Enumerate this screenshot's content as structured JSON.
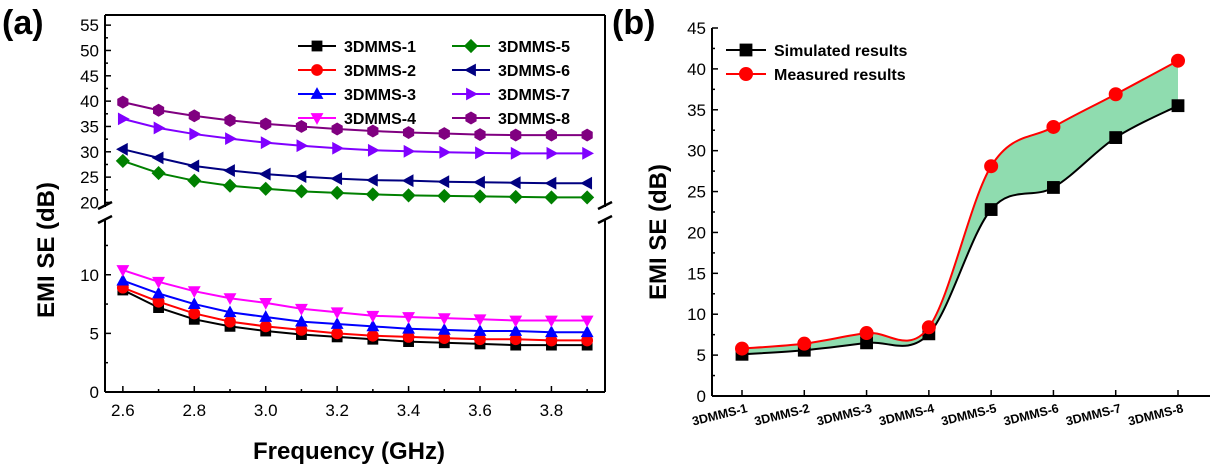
{
  "chart_data": [
    {
      "panel_label": "(a)",
      "type": "line",
      "xlabel": "Frequency (GHz)",
      "ylabel": "EMI SE (dB)",
      "x": [
        2.6,
        2.7,
        2.8,
        2.9,
        3.0,
        3.1,
        3.2,
        3.3,
        3.4,
        3.5,
        3.6,
        3.7,
        3.8,
        3.9
      ],
      "xlim": [
        2.55,
        3.95
      ],
      "x_ticks": [
        2.6,
        2.8,
        3.0,
        3.2,
        3.4,
        3.6,
        3.8
      ],
      "x_tick_labels": [
        "2.6",
        "2.8",
        "3.0",
        "3.2",
        "3.4",
        "3.6",
        "3.8"
      ],
      "ylim_lower": [
        0,
        14.5
      ],
      "ylim_upper": [
        19.5,
        57
      ],
      "y_ticks_lower": [
        0,
        5,
        10
      ],
      "y_ticks_upper": [
        20,
        25,
        30,
        35,
        40,
        45,
        50,
        55
      ],
      "axis_break": true,
      "legend_position": "top-right",
      "series": [
        {
          "name": "3DMMS-1",
          "color": "#000000",
          "marker": "square",
          "values": [
            8.7,
            7.2,
            6.2,
            5.6,
            5.2,
            4.9,
            4.7,
            4.5,
            4.3,
            4.2,
            4.1,
            4.0,
            4.0,
            4.0
          ]
        },
        {
          "name": "3DMMS-2",
          "color": "#ff0000",
          "marker": "circle",
          "values": [
            8.9,
            7.7,
            6.7,
            6.0,
            5.6,
            5.3,
            5.0,
            4.8,
            4.7,
            4.6,
            4.5,
            4.5,
            4.4,
            4.4
          ]
        },
        {
          "name": "3DMMS-3",
          "color": "#0000ff",
          "marker": "triangle-up",
          "values": [
            9.5,
            8.4,
            7.5,
            6.8,
            6.4,
            6.0,
            5.8,
            5.6,
            5.4,
            5.3,
            5.2,
            5.2,
            5.1,
            5.1
          ]
        },
        {
          "name": "3DMMS-4",
          "color": "#ff00ff",
          "marker": "triangle-down",
          "values": [
            10.4,
            9.4,
            8.6,
            8.0,
            7.6,
            7.1,
            6.8,
            6.5,
            6.4,
            6.3,
            6.2,
            6.1,
            6.1,
            6.1
          ]
        },
        {
          "name": "3DMMS-5",
          "color": "#008000",
          "marker": "diamond",
          "values": [
            28.2,
            25.8,
            24.3,
            23.3,
            22.7,
            22.2,
            21.9,
            21.6,
            21.4,
            21.3,
            21.2,
            21.1,
            21.0,
            21.0
          ]
        },
        {
          "name": "3DMMS-6",
          "color": "#000080",
          "marker": "triangle-left",
          "values": [
            30.5,
            28.8,
            27.2,
            26.3,
            25.6,
            25.1,
            24.7,
            24.4,
            24.3,
            24.1,
            24.0,
            23.9,
            23.8,
            23.8
          ]
        },
        {
          "name": "3DMMS-7",
          "color": "#8000ff",
          "marker": "triangle-right",
          "values": [
            36.5,
            34.7,
            33.5,
            32.6,
            31.8,
            31.2,
            30.7,
            30.3,
            30.1,
            29.9,
            29.8,
            29.7,
            29.7,
            29.7
          ]
        },
        {
          "name": "3DMMS-8",
          "color": "#800080",
          "marker": "hexagon",
          "values": [
            39.8,
            38.2,
            37.1,
            36.2,
            35.5,
            35.0,
            34.5,
            34.1,
            33.8,
            33.6,
            33.4,
            33.3,
            33.3,
            33.3
          ]
        }
      ]
    },
    {
      "panel_label": "(b)",
      "type": "line",
      "xlabel": "",
      "ylabel": "EMI SE (dB)",
      "categories": [
        "3DMMS-1",
        "3DMMS-2",
        "3DMMS-3",
        "3DMMS-4",
        "3DMMS-5",
        "3DMMS-6",
        "3DMMS-7",
        "3DMMS-8"
      ],
      "ylim": [
        0,
        45
      ],
      "y_ticks": [
        0,
        5,
        10,
        15,
        20,
        25,
        30,
        35,
        40,
        45
      ],
      "legend_position": "top-left",
      "fill_between_series": true,
      "fill_color": "#8fdcaf",
      "series": [
        {
          "name": "Simulated results",
          "color": "#000000",
          "marker": "square",
          "values": [
            5.1,
            5.6,
            6.5,
            7.6,
            22.8,
            25.5,
            31.6,
            35.5
          ]
        },
        {
          "name": "Measured results",
          "color": "#ff0000",
          "marker": "circle",
          "values": [
            5.8,
            6.4,
            7.7,
            8.4,
            28.1,
            32.9,
            36.9,
            41.0
          ]
        }
      ]
    }
  ]
}
